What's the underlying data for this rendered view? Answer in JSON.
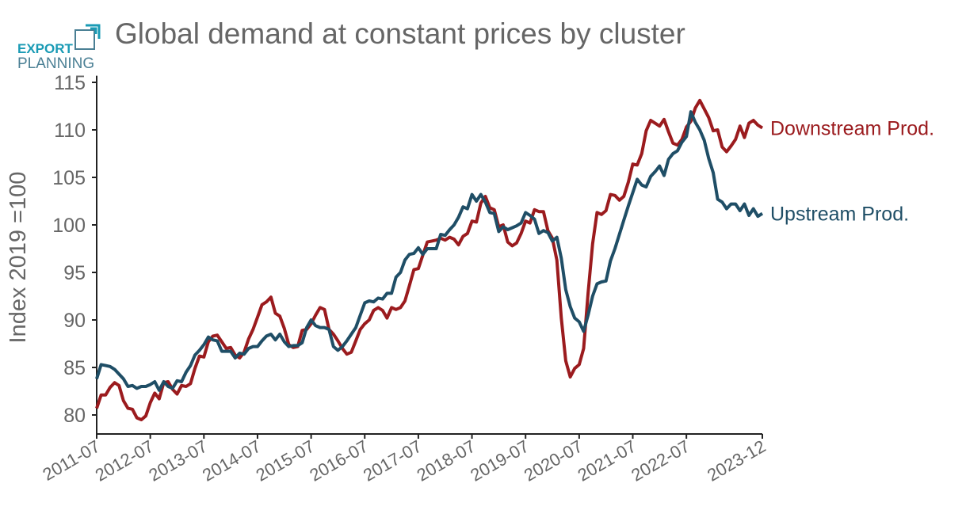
{
  "logo": {
    "line1": "EXPORT",
    "line2": "PLANNING",
    "color1": "#1a9bb5",
    "color2": "#4a7f94"
  },
  "chart_data": {
    "type": "line",
    "title": "Global demand at constant prices by cluster",
    "xlabel": "",
    "ylabel": "Index 2019 =100",
    "ylim": [
      78,
      115.7
    ],
    "yticks": [
      80,
      85,
      90,
      95,
      100,
      105,
      110,
      115
    ],
    "x_start": "2011-07",
    "x_end": "2023-12",
    "frequency": "monthly",
    "xtick_labels": [
      "2011-07",
      "2012-07",
      "2013-07",
      "2014-07",
      "2015-07",
      "2016-07",
      "2017-07",
      "2018-07",
      "2019-07",
      "2020-07",
      "2021-07",
      "2022-07",
      "2023-12"
    ],
    "grid": false,
    "legend_placement": "line-end labels right",
    "series": [
      {
        "name": "Downstream Prod.",
        "color": "#9b1b1e",
        "values": [
          80.7,
          82.1,
          82.1,
          82.9,
          83.4,
          83.1,
          81.5,
          80.7,
          80.6,
          79.7,
          79.5,
          79.9,
          81.3,
          82.3,
          81.7,
          83.4,
          83.5,
          82.7,
          82.2,
          83.1,
          83.0,
          83.3,
          84.9,
          86.2,
          86.1,
          87.7,
          88.3,
          88.4,
          87.7,
          87.0,
          87.1,
          86.3,
          86.0,
          86.6,
          88.0,
          89.0,
          90.3,
          91.6,
          91.9,
          92.4,
          90.7,
          90.4,
          89.1,
          87.4,
          87.1,
          87.2,
          88.9,
          89.0,
          89.6,
          90.5,
          91.3,
          91.1,
          89.0,
          88.5,
          87.8,
          87.0,
          86.4,
          86.6,
          87.8,
          89.0,
          89.6,
          90.0,
          91.0,
          91.3,
          91.0,
          90.2,
          91.3,
          91.1,
          91.3,
          92.0,
          93.6,
          95.3,
          95.4,
          96.8,
          98.2,
          98.3,
          98.4,
          98.6,
          98.4,
          98.7,
          98.5,
          97.9,
          98.8,
          99.1,
          100.4,
          100.3,
          102.3,
          103.0,
          101.8,
          101.6,
          99.8,
          100.0,
          98.2,
          97.8,
          98.1,
          99.1,
          100.4,
          100.2,
          101.6,
          101.4,
          101.4,
          99.4,
          98.6,
          96.3,
          90.2,
          85.7,
          84.0,
          84.9,
          85.3,
          87.0,
          92.8,
          98.0,
          101.3,
          101.1,
          101.5,
          103.2,
          103.1,
          102.6,
          103.0,
          104.5,
          106.4,
          106.3,
          107.5,
          109.9,
          111.0,
          110.7,
          110.4,
          111.1,
          109.8,
          108.6,
          108.4,
          109.0,
          110.3,
          110.9,
          112.3,
          113.1,
          112.2,
          111.3,
          109.9,
          110.0,
          108.2,
          107.7,
          108.3,
          109.0,
          110.4,
          109.2,
          110.7,
          111.0,
          110.5,
          110.2
        ]
      },
      {
        "name": "Upstream Prod.",
        "color": "#1f4e66",
        "values": [
          83.8,
          85.3,
          85.2,
          85.1,
          84.8,
          84.3,
          83.8,
          83.0,
          83.1,
          82.8,
          83.0,
          83.0,
          83.2,
          83.5,
          82.6,
          83.5,
          83.0,
          82.8,
          83.6,
          83.5,
          84.5,
          85.2,
          86.3,
          86.8,
          87.4,
          88.2,
          87.9,
          87.8,
          86.7,
          86.7,
          86.7,
          86.0,
          86.5,
          86.4,
          87.0,
          87.2,
          87.2,
          87.8,
          88.3,
          88.5,
          87.9,
          88.5,
          87.7,
          87.2,
          87.3,
          87.3,
          87.6,
          89.2,
          90.0,
          89.4,
          89.2,
          89.2,
          89.0,
          87.2,
          86.8,
          87.2,
          87.8,
          88.5,
          89.2,
          90.5,
          91.8,
          92.0,
          91.9,
          92.3,
          92.2,
          92.8,
          92.8,
          94.5,
          95.0,
          96.3,
          96.9,
          97.0,
          97.6,
          96.9,
          97.5,
          97.5,
          97.5,
          99.0,
          98.9,
          99.5,
          100.0,
          100.8,
          101.9,
          101.7,
          103.2,
          102.5,
          103.2,
          102.4,
          101.3,
          101.2,
          99.3,
          99.8,
          99.5,
          99.7,
          99.9,
          100.2,
          101.3,
          101.0,
          100.6,
          99.1,
          99.4,
          99.2,
          98.3,
          98.7,
          96.5,
          93.2,
          91.4,
          90.2,
          89.8,
          88.8,
          90.5,
          92.5,
          93.8,
          94.0,
          94.1,
          96.2,
          97.5,
          99.0,
          100.5,
          102.0,
          103.4,
          104.8,
          104.2,
          104.0,
          105.1,
          105.6,
          106.2,
          105.2,
          106.9,
          107.5,
          107.8,
          108.7,
          109.3,
          111.9,
          110.8,
          110.0,
          108.9,
          107.0,
          105.5,
          102.7,
          102.4,
          101.7,
          102.2,
          102.2,
          101.5,
          102.2,
          101.0,
          101.7,
          100.9,
          101.2
        ]
      }
    ]
  }
}
